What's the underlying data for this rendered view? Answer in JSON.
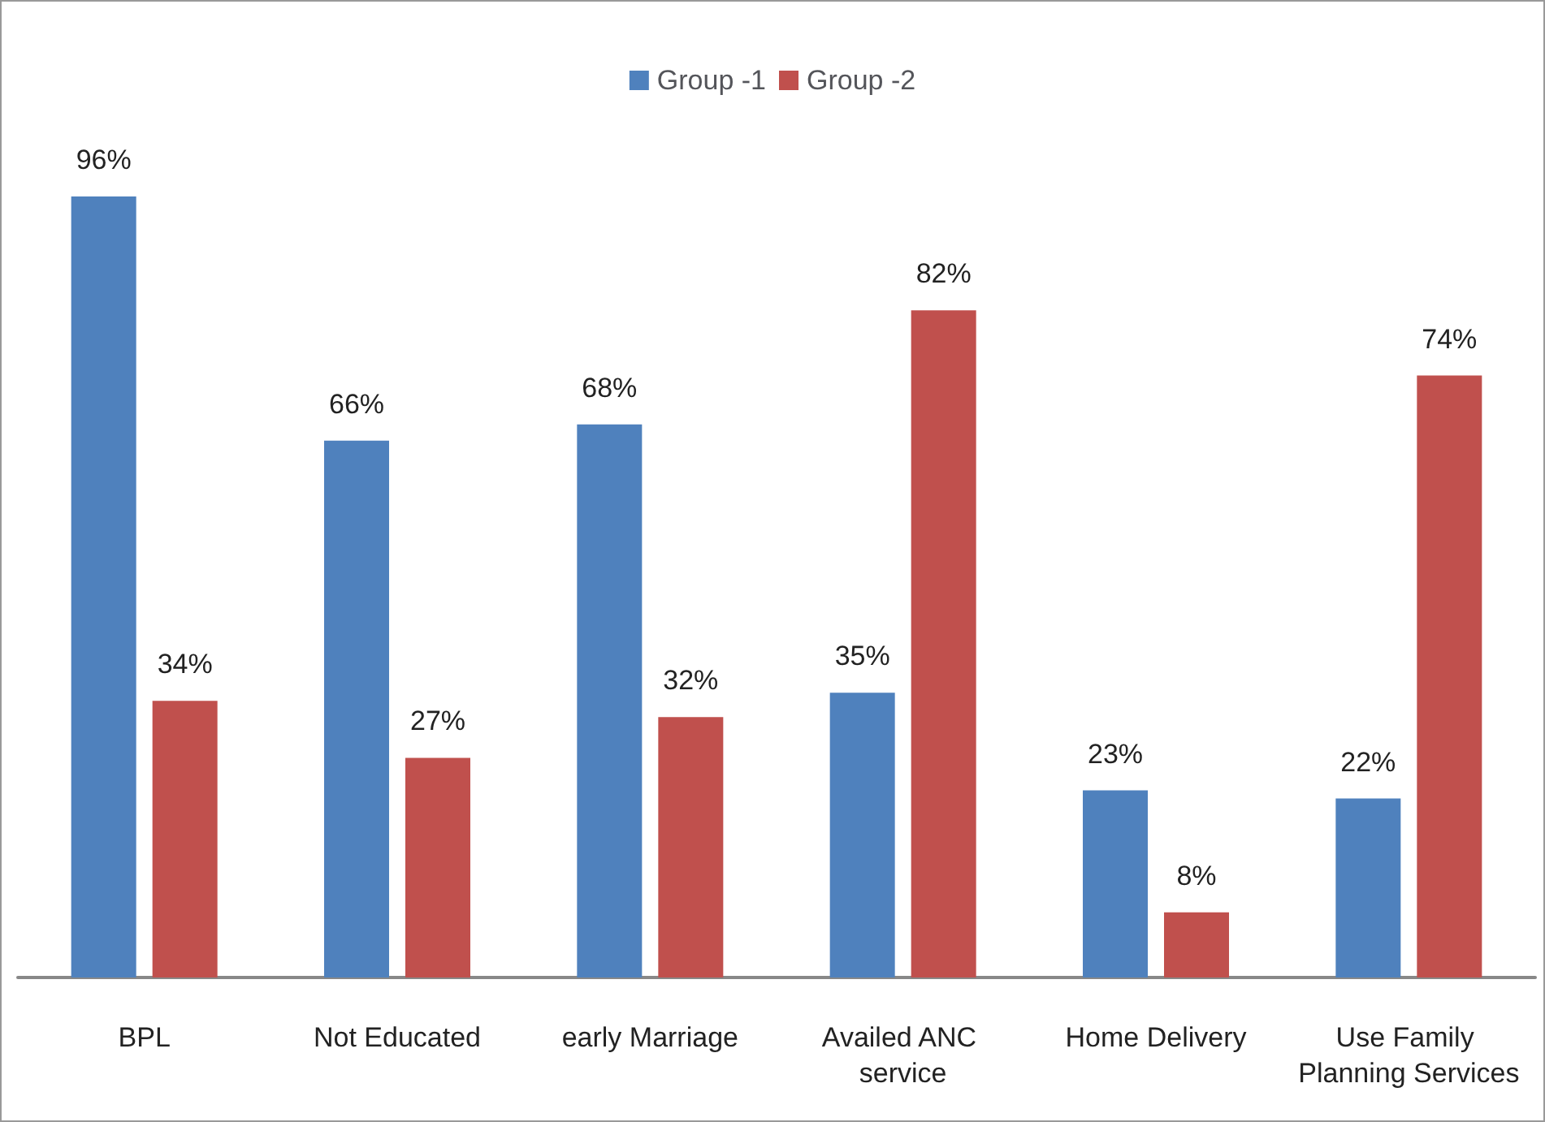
{
  "chart_data": {
    "type": "bar",
    "categories": [
      "BPL",
      "Not Educated",
      "early Marriage",
      "Availed ANC service",
      "Home Delivery",
      "Use Family Planning Services"
    ],
    "series": [
      {
        "name": "Group -1",
        "color": "#4f81bd",
        "values": [
          96,
          66,
          68,
          35,
          23,
          22
        ],
        "value_labels": [
          "96%",
          "66%",
          "68%",
          "35%",
          "23%",
          "22%"
        ]
      },
      {
        "name": "Group -2",
        "color": "#c0504d",
        "values": [
          34,
          27,
          32,
          82,
          8,
          74
        ],
        "value_labels": [
          "34%",
          "27%",
          "32%",
          "82%",
          "8%",
          "74%"
        ]
      }
    ],
    "legend": "top"
  }
}
